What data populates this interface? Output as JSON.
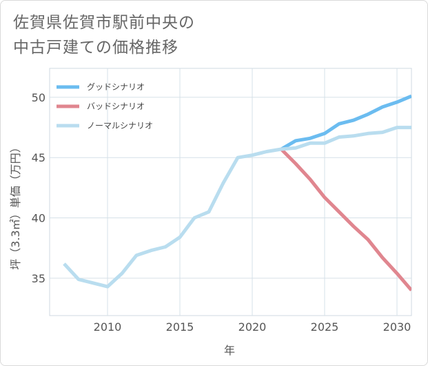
{
  "title_lines": [
    "佐賀県佐賀市駅前中央の",
    "中古戸建ての価格推移"
  ],
  "chart_data": {
    "type": "line",
    "xlabel": "年",
    "ylabel": "坪（3.3㎡）単価（万円）",
    "xlim": [
      2006,
      2031
    ],
    "ylim": [
      31.9,
      52.4
    ],
    "xticks": [
      2010,
      2015,
      2020,
      2025,
      2030
    ],
    "yticks": [
      35,
      40,
      45,
      50
    ],
    "grid": true,
    "legend_position": "top-left",
    "series": [
      {
        "name": "グッドシナリオ",
        "color": "#6bbcf0",
        "x": [
          2022,
          2023,
          2024,
          2025,
          2026,
          2027,
          2028,
          2029,
          2030,
          2031
        ],
        "y": [
          45.7,
          46.4,
          46.6,
          47.0,
          47.8,
          48.1,
          48.6,
          49.2,
          49.6,
          50.1
        ]
      },
      {
        "name": "バッドシナリオ",
        "color": "#e0868f",
        "x": [
          2022,
          2023,
          2024,
          2025,
          2026,
          2027,
          2028,
          2029,
          2030,
          2031
        ],
        "y": [
          45.7,
          44.5,
          43.2,
          41.7,
          40.5,
          39.3,
          38.2,
          36.7,
          35.4,
          34.0
        ]
      },
      {
        "name": "ノーマルシナリオ",
        "color": "#b9ddef",
        "x": [
          2007,
          2008,
          2009,
          2010,
          2011,
          2012,
          2013,
          2014,
          2015,
          2016,
          2017,
          2018,
          2019,
          2020,
          2021,
          2022,
          2023,
          2024,
          2025,
          2026,
          2027,
          2028,
          2029,
          2030,
          2031
        ],
        "y": [
          36.2,
          34.9,
          34.6,
          34.3,
          35.4,
          36.9,
          37.3,
          37.6,
          38.4,
          40.0,
          40.5,
          42.9,
          45.0,
          45.2,
          45.5,
          45.7,
          45.8,
          46.2,
          46.2,
          46.7,
          46.8,
          47.0,
          47.1,
          47.5,
          47.5
        ]
      }
    ]
  }
}
